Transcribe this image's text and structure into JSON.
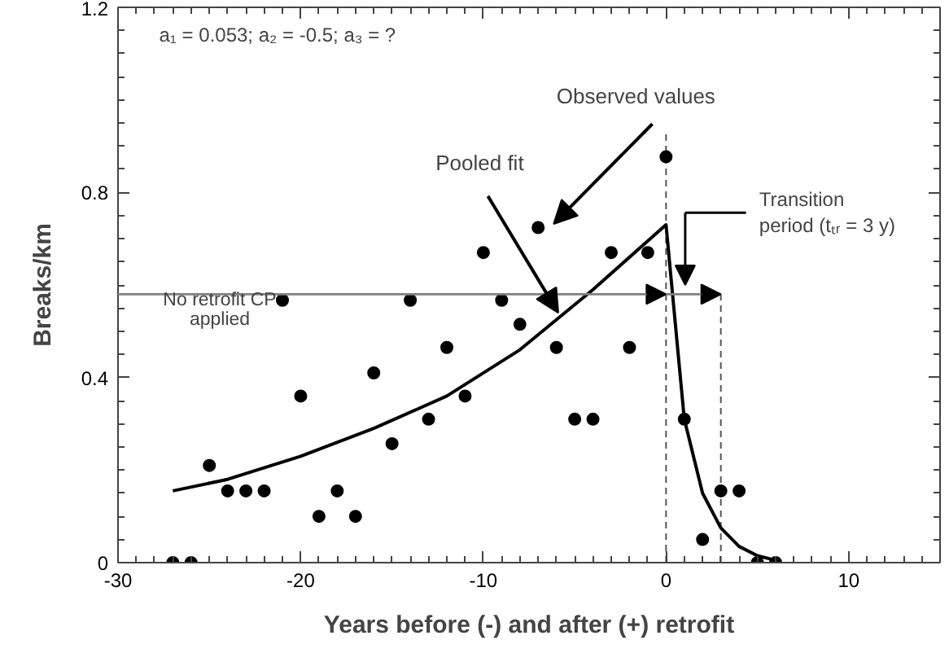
{
  "chart_data": {
    "type": "scatter",
    "xlabel": "Years before (-) and after (+) retrofit",
    "ylabel": "Breaks/km",
    "xlim": [
      -30,
      15
    ],
    "ylim": [
      0,
      1.2
    ],
    "xticks": [
      -30,
      -20,
      -10,
      0,
      10
    ],
    "yticks": [
      0,
      0.4,
      0.8,
      1.2
    ],
    "grid": false,
    "series": [
      {
        "color": "#000000",
        "marker": "circle",
        "x": [
          -27,
          -26,
          -25,
          -24,
          -23,
          -22,
          -21,
          -20,
          -19,
          -18,
          -17,
          -16,
          -15,
          -14,
          -13,
          -12,
          -11,
          -10,
          -9,
          -8,
          -7,
          -6,
          -5,
          -4,
          -3,
          -2,
          -1,
          0,
          1,
          2,
          3,
          4,
          5,
          6
        ],
        "values": [
          0,
          0,
          0.21,
          0.155,
          0.155,
          0.155,
          0.567,
          0.36,
          0.1,
          0.155,
          0.1,
          0.41,
          0.257,
          0.567,
          0.31,
          0.465,
          0.36,
          0.67,
          0.567,
          0.515,
          0.724,
          0.465,
          0.31,
          0.31,
          0.67,
          0.465,
          0.67,
          0.877,
          0.31,
          0.05,
          0.155,
          0.155,
          0,
          0
        ]
      },
      {
        "type": "line",
        "color": "#000000",
        "marker": "none",
        "line_style": "solid",
        "x": [
          -27,
          -24,
          -20,
          -16,
          -12,
          -8,
          -4,
          0,
          1,
          2,
          3,
          4,
          5,
          6
        ],
        "values": [
          0.155,
          0.18,
          0.23,
          0.29,
          0.36,
          0.46,
          0.59,
          0.73,
          0.31,
          0.15,
          0.075,
          0.035,
          0.015,
          0.005
        ]
      }
    ],
    "ref_lines": [
      {
        "axis": "y",
        "value": 0.58,
        "label": "No retrofit CP applied",
        "color": "#808080",
        "line_style": "solid"
      },
      {
        "axis": "x",
        "value": 0,
        "color": "#555555",
        "line_style": "dashed"
      },
      {
        "axis": "x",
        "value": 3,
        "color": "#555555",
        "line_style": "dashed"
      }
    ],
    "annotations": [
      "a₁ = 0.053; a₂ = -0.5;  a₃ = ?",
      "Observed values",
      {
        "text": "Pooled fit",
        "x": -5.9,
        "y": 0.54
      },
      "Transition period (tₜᵣ = 3 y)"
    ]
  }
}
